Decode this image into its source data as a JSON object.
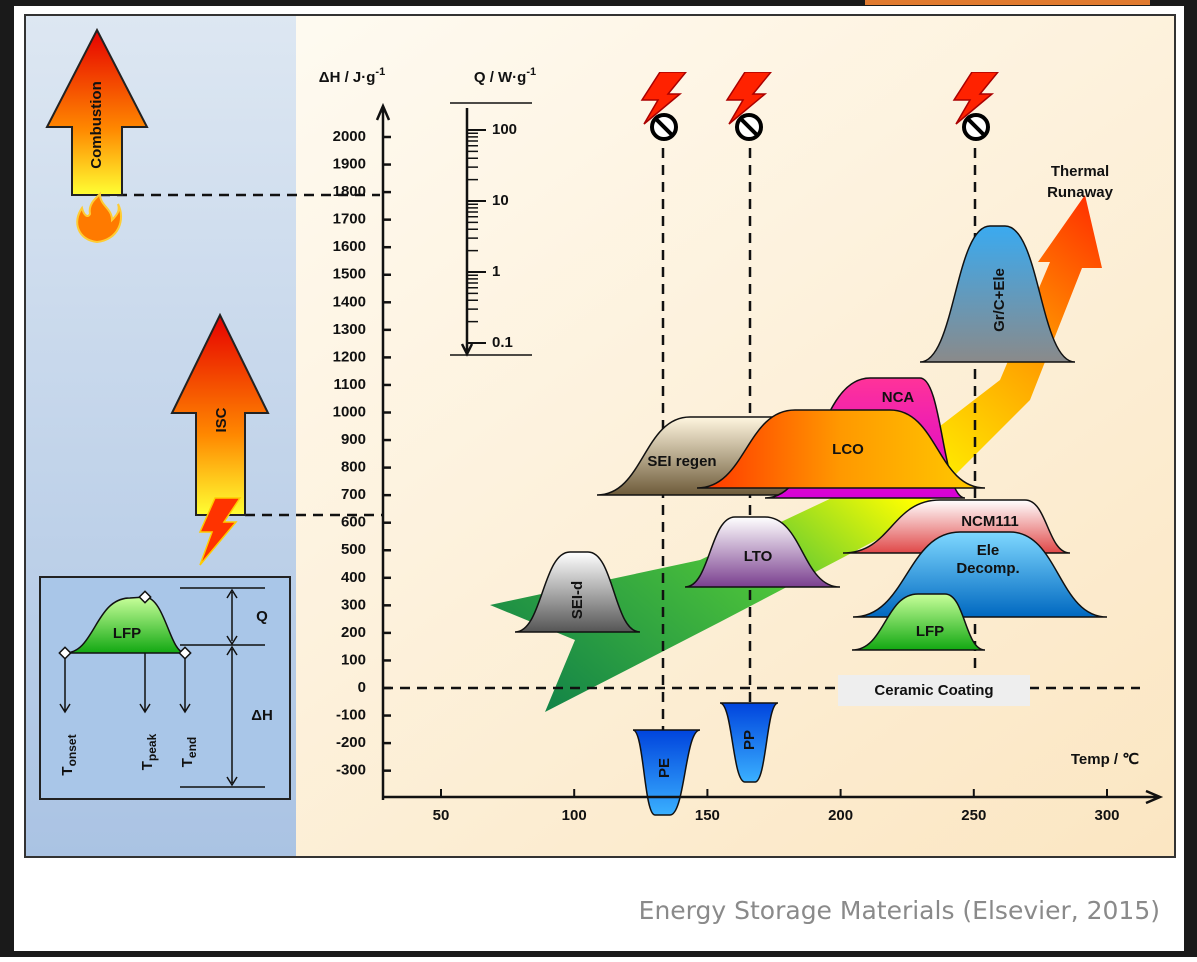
{
  "dh_axis": {
    "label": {
      "text": "ΔH / J·g",
      "sup": "-1"
    },
    "ticks": [
      2000,
      1900,
      1800,
      1700,
      1600,
      1500,
      1400,
      1300,
      1200,
      1100,
      1000,
      900,
      800,
      700,
      600,
      500,
      400,
      300,
      200,
      100,
      0,
      -100,
      -200,
      -300
    ]
  },
  "q_axis": {
    "label": {
      "text": "Q / W·g",
      "sup": "-1"
    },
    "ticks": [
      100,
      10,
      1,
      0.1
    ]
  },
  "temp_axis": {
    "label": "Temp / ℃",
    "ticks": [
      50,
      100,
      150,
      200,
      250,
      300
    ]
  },
  "left_panel": {
    "combustion": "Combustion",
    "isc": "ISC",
    "inset": {
      "peak": "LFP",
      "q": "Q",
      "dh": "ΔH",
      "t_onset": {
        "base": "T",
        "sub": "onset"
      },
      "t_peak": {
        "base": "T",
        "sub": "peak"
      },
      "t_end": {
        "base": "T",
        "sub": "end"
      }
    }
  },
  "peaks": [
    {
      "label": [
        "SEI-d"
      ]
    },
    {
      "label": [
        "LTO"
      ]
    },
    {
      "label": [
        "SEI regen"
      ]
    },
    {
      "label": [
        "NCA"
      ]
    },
    {
      "label": [
        "LCO"
      ]
    },
    {
      "label": [
        "NCM111"
      ]
    },
    {
      "label": [
        "Ele",
        "Decomp."
      ]
    },
    {
      "label": [
        "LFP"
      ]
    },
    {
      "label": [
        "Gr/C+Ele"
      ]
    },
    {
      "label": [
        "PE"
      ]
    },
    {
      "label": [
        "PP"
      ]
    }
  ],
  "annotations": {
    "thermal_runaway": [
      "Thermal",
      "Runaway"
    ],
    "ceramic_coating": "Ceramic Coating"
  },
  "caption": "Energy Storage Materials (Elsevier, 2015)"
}
